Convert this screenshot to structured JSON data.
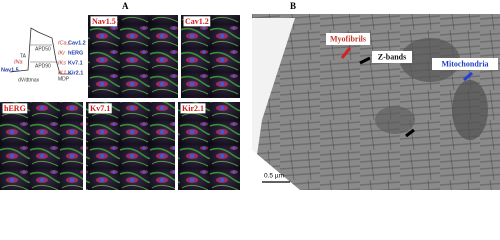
{
  "panel_a": {
    "label": "A",
    "diagram": {
      "left_channel": "Nav1.5",
      "left_current": "INa",
      "upstroke": "dV/dtmax",
      "threshold": "TA",
      "apd50": "APD50",
      "apd90": "APD90",
      "mdp": "MDP",
      "channels": [
        {
          "current": "ICa,L",
          "channel": "Cav1.2"
        },
        {
          "current": "IKr",
          "channel": "hERG"
        },
        {
          "current": "IKs",
          "channel": "Kv7.1"
        },
        {
          "current": "IK1",
          "channel": "Kir2.1"
        }
      ]
    },
    "images": [
      "Nav1.5",
      "Cav1.2",
      "hERG",
      "Kv7.1",
      "Kir2.1"
    ]
  },
  "panel_b": {
    "label": "B",
    "annotations": {
      "myofibrils": "Myofibrils",
      "z_bands": "Z-bands",
      "mitochondria": "Mitochondria"
    },
    "scale_bar": "0.5 µm"
  }
}
